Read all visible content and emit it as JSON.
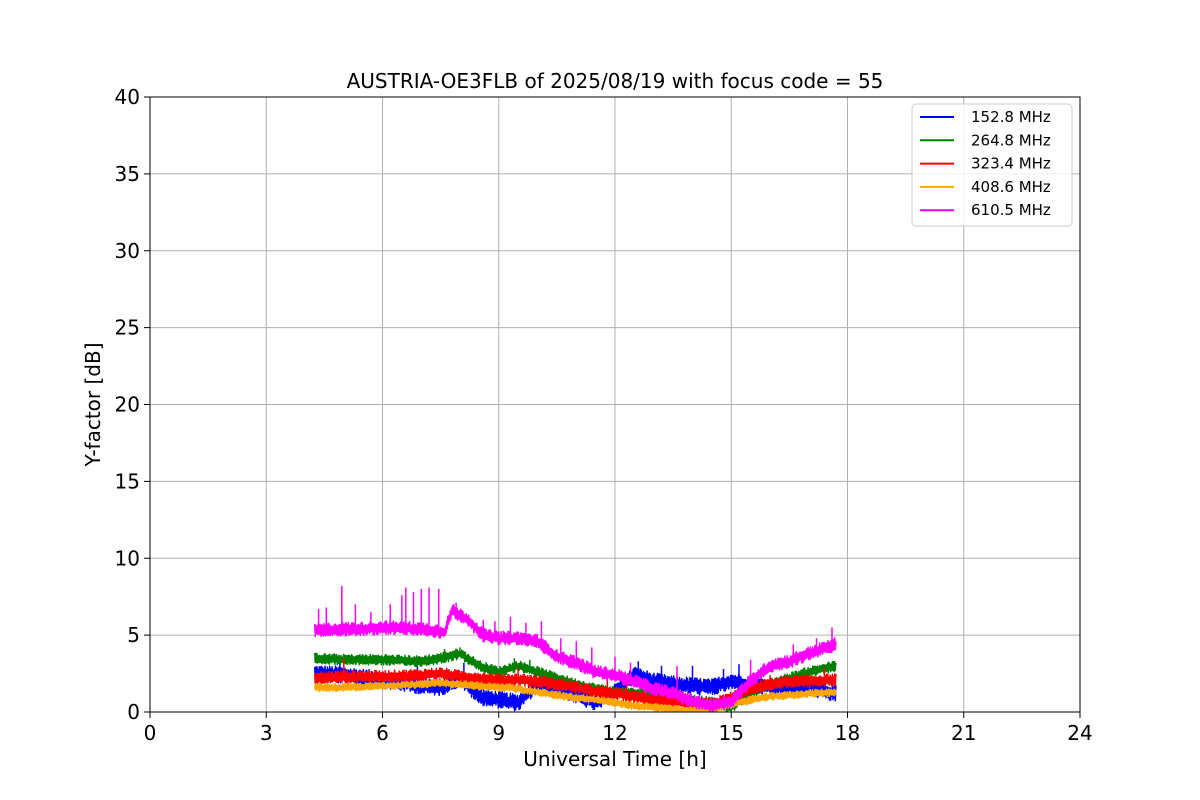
{
  "chart_data": {
    "type": "line",
    "title": "AUSTRIA-OE3FLB of 2025/08/19 with focus code = 55",
    "xlabel": "Universal Time [h]",
    "ylabel": "Y-factor [dB]",
    "xlim": [
      0,
      24
    ],
    "ylim": [
      0,
      40
    ],
    "xticks": [
      0,
      3,
      6,
      9,
      12,
      15,
      18,
      21,
      24
    ],
    "yticks": [
      0,
      5,
      10,
      15,
      20,
      25,
      30,
      35,
      40
    ],
    "xtick_labels": [
      "0",
      "3",
      "6",
      "9",
      "12",
      "15",
      "18",
      "21",
      "24"
    ],
    "ytick_labels": [
      "0",
      "5",
      "10",
      "15",
      "20",
      "25",
      "30",
      "35",
      "40"
    ],
    "grid": true,
    "legend_position": "top-right",
    "series": [
      {
        "name": "152.8 MHz",
        "color": "#0000ff",
        "x": [
          4.25,
          5,
          6,
          7,
          7.5,
          8,
          8.5,
          9,
          9.5,
          10,
          10.5,
          11,
          11.5,
          12,
          12.5,
          13,
          13.5,
          14,
          14.5,
          15,
          15.5,
          16,
          16.5,
          17,
          17.7
        ],
        "y": [
          2.5,
          2.4,
          2.1,
          1.7,
          1.6,
          2.2,
          1.0,
          0.8,
          0.6,
          1.8,
          1.6,
          1.1,
          0.6,
          1.3,
          2.4,
          2.0,
          1.8,
          1.7,
          1.6,
          2.0,
          1.8,
          1.6,
          1.6,
          1.6,
          1.2
        ]
      },
      {
        "name": "264.8 MHz",
        "color": "#008000",
        "x": [
          4.25,
          5,
          6,
          7,
          7.5,
          8,
          8.5,
          9,
          9.5,
          10,
          10.5,
          11,
          11.5,
          12,
          12.5,
          13,
          13.5,
          14,
          14.5,
          15,
          15.5,
          16,
          16.5,
          17,
          17.7
        ],
        "y": [
          3.5,
          3.4,
          3.4,
          3.3,
          3.5,
          3.8,
          3.0,
          2.6,
          3.0,
          2.6,
          2.2,
          1.8,
          1.5,
          1.3,
          1.2,
          1.1,
          1.0,
          0.8,
          0.6,
          0.3,
          1.2,
          1.8,
          2.2,
          2.6,
          3.0
        ]
      },
      {
        "name": "323.4 MHz",
        "color": "#ff0000",
        "x": [
          4.25,
          5,
          6,
          7,
          7.5,
          8,
          8.5,
          9,
          9.5,
          10,
          10.5,
          11,
          11.5,
          12,
          12.5,
          13,
          13.5,
          14,
          14.5,
          15,
          15.5,
          16,
          16.5,
          17,
          17.7
        ],
        "y": [
          2.2,
          2.3,
          2.3,
          2.4,
          2.5,
          2.3,
          2.2,
          2.1,
          2.1,
          2.0,
          1.8,
          1.6,
          1.3,
          1.2,
          1.0,
          0.8,
          0.7,
          0.5,
          0.5,
          0.9,
          1.5,
          1.8,
          2.0,
          2.0,
          2.1
        ]
      },
      {
        "name": "408.6 MHz",
        "color": "#ffa500",
        "x": [
          4.25,
          5,
          6,
          7,
          7.5,
          8,
          8.5,
          9,
          9.5,
          10,
          10.5,
          11,
          11.5,
          12,
          12.5,
          13,
          13.5,
          14,
          14.5,
          15,
          15.5,
          16,
          16.5,
          17,
          17.7
        ],
        "y": [
          1.6,
          1.6,
          1.7,
          1.8,
          1.9,
          1.8,
          1.7,
          1.6,
          1.5,
          1.3,
          1.1,
          0.9,
          0.8,
          0.6,
          0.4,
          0.3,
          0.2,
          0.1,
          0.2,
          0.5,
          0.8,
          1.0,
          1.1,
          1.2,
          1.3
        ]
      },
      {
        "name": "610.5 MHz",
        "color": "#ff00ff",
        "x": [
          4.25,
          5,
          5.5,
          6,
          7,
          7.6,
          7.8,
          8.2,
          8.6,
          9,
          9.5,
          10,
          10.5,
          11,
          11.5,
          12,
          12.5,
          13,
          13.5,
          14,
          14.5,
          15,
          15.5,
          16,
          16.5,
          17,
          17.7
        ],
        "y": [
          5.3,
          5.4,
          5.4,
          5.5,
          5.4,
          5.2,
          6.6,
          6.0,
          5.0,
          4.8,
          4.8,
          4.6,
          3.6,
          3.2,
          2.6,
          2.4,
          2.0,
          1.5,
          1.2,
          0.7,
          0.4,
          0.7,
          2.0,
          3.0,
          3.3,
          3.8,
          4.4
        ]
      }
    ],
    "spikes": {
      "610.5 MHz": [
        [
          4.35,
          6.7
        ],
        [
          4.55,
          6.8
        ],
        [
          4.95,
          8.2
        ],
        [
          5.3,
          7.0
        ],
        [
          5.7,
          6.5
        ],
        [
          6.2,
          7.0
        ],
        [
          6.5,
          7.6
        ],
        [
          6.6,
          8.1
        ],
        [
          6.8,
          7.8
        ],
        [
          7.0,
          8.0
        ],
        [
          7.2,
          8.1
        ],
        [
          7.45,
          8.0
        ],
        [
          7.9,
          7.1
        ],
        [
          8.6,
          6.0
        ],
        [
          8.9,
          5.9
        ],
        [
          9.3,
          6.2
        ],
        [
          9.7,
          5.8
        ],
        [
          10.1,
          5.9
        ],
        [
          10.6,
          4.8
        ],
        [
          11.0,
          4.6
        ],
        [
          11.4,
          4.2
        ],
        [
          12.0,
          3.6
        ],
        [
          12.4,
          3.2
        ],
        [
          13.6,
          3.0
        ],
        [
          15.5,
          3.4
        ],
        [
          16.6,
          4.4
        ],
        [
          17.2,
          4.8
        ],
        [
          17.6,
          5.5
        ]
      ],
      "152.8 MHz": [
        [
          4.9,
          3.5
        ],
        [
          6.9,
          3.2
        ],
        [
          8.1,
          3.2
        ],
        [
          12.6,
          3.3
        ],
        [
          13.2,
          3.0
        ],
        [
          14.0,
          3.0
        ],
        [
          14.8,
          2.8
        ],
        [
          15.2,
          3.1
        ]
      ],
      "264.8 MHz": [
        [
          7.6,
          4.1
        ],
        [
          8.0,
          4.2
        ],
        [
          9.4,
          3.5
        ],
        [
          9.8,
          3.4
        ]
      ],
      "323.4 MHz": [
        [
          5.0,
          3.5
        ],
        [
          9.5,
          2.9
        ],
        [
          11.8,
          2.2
        ],
        [
          12.3,
          2.0
        ],
        [
          16.0,
          2.4
        ],
        [
          17.4,
          2.9
        ]
      ]
    }
  }
}
